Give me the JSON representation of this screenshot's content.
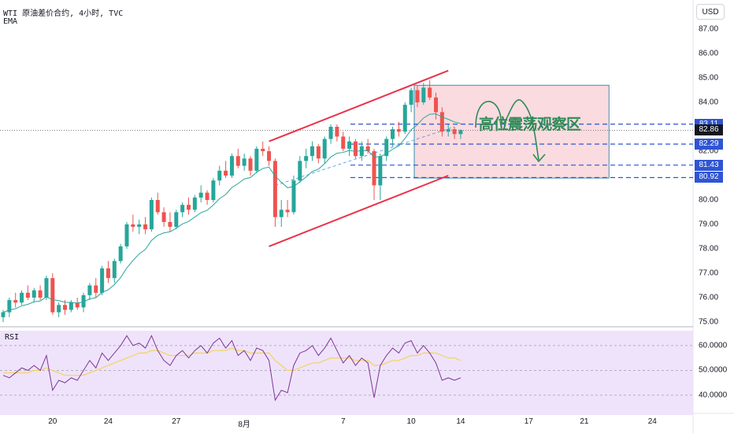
{
  "header": {
    "line1": "WTI 原油差价合约, 4小时, TVC",
    "line2": "EMA"
  },
  "currency_button": "USD",
  "annotation_text": "高位震荡观察区",
  "rsi_label": "RSI",
  "colors": {
    "up": "#26a69a",
    "down": "#ef5350",
    "channel": "#e8334a",
    "level_line": "#2f55d4",
    "zone_fill": "#fadbe0",
    "zone_border": "#3a8fb0",
    "ema": "#26a69a",
    "rsi_line": "#7e3794",
    "rsi_ma": "#f2d35b",
    "rsi_band": "#efe3fb",
    "badge_blue": "#2f55d4",
    "badge_dark": "#131722",
    "annotation": "#2e8b57"
  },
  "chart_data": [
    {
      "type": "candlestick",
      "title": "WTI 原油差价合约, 4小时, TVC",
      "y_axis_ticks": [
        "87.00",
        "86.00",
        "85.00",
        "84.00",
        "83.00",
        "82.00",
        "81.00",
        "80.00",
        "79.00",
        "78.00",
        "77.00",
        "76.00",
        "75.00"
      ],
      "ylim": [
        75.0,
        87.4
      ],
      "x_axis_ticks": [
        {
          "label": "20",
          "index": 8
        },
        {
          "label": "24",
          "index": 17
        },
        {
          "label": "27",
          "index": 28
        },
        {
          "label": "8月",
          "index": 39
        },
        {
          "label": "7",
          "index": 55
        },
        {
          "label": "10",
          "index": 66
        },
        {
          "label": "14",
          "index": 74
        },
        {
          "label": "17",
          "index": 85
        },
        {
          "label": "21",
          "index": 94
        },
        {
          "label": "24",
          "index": 105
        }
      ],
      "ema_label": "EMA",
      "price_levels": [
        {
          "value": 83.11,
          "label": "83.11",
          "style": "dashed",
          "badge": "badge_blue"
        },
        {
          "value": 82.86,
          "label": "82.86",
          "style": "dotted",
          "badge": "badge_dark"
        },
        {
          "value": 82.29,
          "label": "82.29",
          "style": "dashed",
          "badge": "badge_blue"
        },
        {
          "value": 81.43,
          "label": "81.43",
          "style": "dashed",
          "badge": "badge_blue"
        },
        {
          "value": 80.92,
          "label": "80.92",
          "style": "dashed",
          "badge": "badge_blue"
        }
      ],
      "channel": {
        "upper": [
          {
            "index": 43,
            "value": 82.4
          },
          {
            "index": 72,
            "value": 85.3
          }
        ],
        "lower": [
          {
            "index": 43,
            "value": 78.1
          },
          {
            "index": 72,
            "value": 81.0
          }
        ]
      },
      "zone": {
        "from_index": 66.5,
        "to_index": 98,
        "high": 84.7,
        "low": 80.9
      },
      "candles": [
        [
          75.2,
          75.5,
          75.0,
          75.4
        ],
        [
          75.4,
          76.0,
          75.2,
          75.9
        ],
        [
          75.9,
          76.2,
          75.6,
          75.8
        ],
        [
          75.8,
          76.3,
          75.7,
          76.2
        ],
        [
          76.2,
          76.5,
          75.9,
          76.0
        ],
        [
          76.0,
          76.4,
          75.8,
          76.3
        ],
        [
          76.3,
          76.5,
          75.9,
          76.0
        ],
        [
          76.0,
          76.9,
          75.9,
          76.8
        ],
        [
          76.8,
          77.0,
          75.3,
          75.4
        ],
        [
          75.4,
          75.8,
          75.2,
          75.7
        ],
        [
          75.7,
          75.9,
          75.3,
          75.5
        ],
        [
          75.5,
          75.9,
          75.4,
          75.8
        ],
        [
          75.8,
          76.0,
          75.5,
          75.6
        ],
        [
          75.6,
          76.2,
          75.4,
          76.1
        ],
        [
          76.1,
          76.6,
          75.9,
          76.5
        ],
        [
          76.5,
          76.8,
          76.0,
          76.2
        ],
        [
          76.2,
          77.3,
          76.1,
          77.2
        ],
        [
          77.2,
          77.5,
          76.6,
          76.8
        ],
        [
          76.8,
          77.6,
          76.6,
          77.5
        ],
        [
          77.5,
          78.2,
          77.4,
          78.1
        ],
        [
          78.1,
          79.1,
          78.0,
          79.0
        ],
        [
          79.0,
          79.4,
          78.7,
          78.9
        ],
        [
          78.9,
          79.2,
          78.6,
          79.0
        ],
        [
          79.0,
          79.3,
          78.6,
          78.8
        ],
        [
          78.8,
          80.1,
          78.7,
          80.0
        ],
        [
          80.0,
          80.3,
          79.4,
          79.5
        ],
        [
          79.5,
          79.7,
          78.9,
          79.1
        ],
        [
          79.1,
          79.5,
          78.7,
          78.9
        ],
        [
          78.9,
          79.6,
          78.8,
          79.5
        ],
        [
          79.5,
          79.9,
          79.3,
          79.8
        ],
        [
          79.8,
          80.1,
          79.4,
          79.6
        ],
        [
          79.6,
          80.2,
          79.5,
          80.1
        ],
        [
          80.1,
          80.6,
          79.9,
          80.3
        ],
        [
          80.3,
          80.4,
          79.8,
          80.0
        ],
        [
          80.0,
          80.9,
          79.9,
          80.8
        ],
        [
          80.8,
          81.4,
          80.6,
          81.2
        ],
        [
          81.2,
          81.6,
          80.9,
          81.0
        ],
        [
          81.0,
          81.9,
          80.9,
          81.8
        ],
        [
          81.8,
          82.1,
          81.3,
          81.4
        ],
        [
          81.4,
          81.9,
          81.2,
          81.7
        ],
        [
          81.7,
          81.8,
          81.0,
          81.2
        ],
        [
          81.2,
          82.2,
          81.1,
          82.1
        ],
        [
          82.1,
          82.4,
          81.8,
          82.0
        ],
        [
          82.0,
          82.2,
          81.4,
          81.6
        ],
        [
          81.6,
          81.7,
          78.9,
          79.3
        ],
        [
          79.3,
          80.0,
          78.9,
          79.6
        ],
        [
          79.6,
          80.0,
          79.3,
          79.5
        ],
        [
          79.5,
          81.0,
          79.4,
          80.8
        ],
        [
          80.8,
          81.8,
          80.7,
          81.6
        ],
        [
          81.6,
          82.1,
          81.3,
          81.8
        ],
        [
          81.8,
          82.4,
          81.6,
          82.2
        ],
        [
          82.2,
          82.3,
          81.5,
          81.7
        ],
        [
          81.7,
          82.6,
          81.5,
          82.5
        ],
        [
          82.5,
          83.1,
          82.3,
          83.0
        ],
        [
          83.0,
          83.1,
          82.4,
          82.6
        ],
        [
          82.6,
          82.8,
          82.0,
          82.1
        ],
        [
          82.1,
          82.6,
          81.8,
          82.4
        ],
        [
          82.4,
          82.5,
          81.7,
          81.8
        ],
        [
          81.8,
          82.4,
          81.6,
          82.2
        ],
        [
          82.2,
          82.5,
          81.9,
          82.0
        ],
        [
          82.0,
          82.1,
          80.0,
          80.6
        ],
        [
          80.6,
          81.9,
          80.0,
          81.8
        ],
        [
          81.8,
          82.6,
          81.6,
          82.5
        ],
        [
          82.5,
          83.0,
          82.2,
          82.9
        ],
        [
          82.9,
          83.2,
          82.6,
          82.8
        ],
        [
          82.8,
          84.0,
          82.7,
          83.9
        ],
        [
          83.9,
          84.6,
          83.6,
          84.5
        ],
        [
          84.5,
          84.7,
          83.8,
          84.0
        ],
        [
          84.0,
          84.8,
          83.9,
          84.6
        ],
        [
          84.6,
          84.9,
          84.1,
          84.2
        ],
        [
          84.2,
          84.4,
          83.3,
          83.6
        ],
        [
          83.6,
          83.8,
          82.6,
          82.8
        ],
        [
          82.8,
          83.1,
          82.6,
          82.9
        ],
        [
          82.9,
          83.0,
          82.5,
          82.7
        ],
        [
          82.7,
          82.9,
          82.5,
          82.86
        ]
      ]
    },
    {
      "type": "line",
      "title": "RSI",
      "y_axis_ticks": [
        "60.0000",
        "50.0000",
        "40.0000"
      ],
      "ylim": [
        32,
        66
      ],
      "series": [
        {
          "values": [
            48,
            47,
            49,
            51,
            50,
            52,
            50,
            56,
            42,
            46,
            45,
            47,
            46,
            50,
            54,
            51,
            57,
            54,
            57,
            60,
            64,
            60,
            61,
            59,
            64,
            58,
            54,
            52,
            56,
            58,
            55,
            58,
            60,
            57,
            61,
            63,
            59,
            62,
            56,
            58,
            54,
            59,
            58,
            54,
            38,
            42,
            41,
            52,
            57,
            58,
            60,
            56,
            59,
            63,
            58,
            53,
            56,
            52,
            55,
            53,
            39,
            52,
            56,
            59,
            57,
            61,
            62,
            57,
            60,
            57,
            53,
            46,
            47,
            46,
            47
          ]
        },
        {
          "values": [
            49,
            49,
            49,
            49,
            49,
            50,
            50,
            51,
            50,
            49,
            48,
            48,
            48,
            48,
            49,
            50,
            51,
            52,
            53,
            54,
            55,
            56,
            57,
            57,
            58,
            58,
            57,
            56,
            56,
            56,
            56,
            57,
            57,
            57,
            58,
            58,
            58,
            59,
            58,
            58,
            57,
            57,
            57,
            57,
            54,
            52,
            50,
            50,
            51,
            52,
            53,
            53,
            54,
            55,
            55,
            55,
            55,
            54,
            54,
            54,
            52,
            52,
            53,
            54,
            54,
            55,
            56,
            56,
            57,
            57,
            57,
            56,
            55,
            55,
            54
          ]
        }
      ]
    }
  ]
}
